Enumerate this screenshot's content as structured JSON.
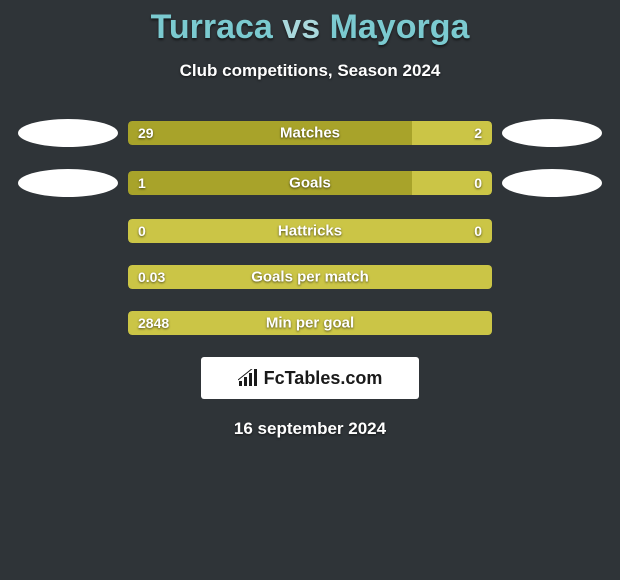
{
  "background_color": "#2f3438",
  "title": {
    "player1": "Turraca",
    "vs": "vs",
    "player2": "Mayorga",
    "color_player1": "#7bcad0",
    "color_vs": "#a9d8dc",
    "color_player2": "#7bcad0",
    "fontsize": 34
  },
  "subtitle": "Club competitions, Season 2024",
  "stats": [
    {
      "label": "Matches",
      "left_value": "29",
      "right_value": "2",
      "left_pct": 78,
      "right_pct": 22,
      "left_color": "#a8a32a",
      "right_color": "#cbc546",
      "show_left_ellipse": true,
      "show_right_ellipse": true
    },
    {
      "label": "Goals",
      "left_value": "1",
      "right_value": "0",
      "left_pct": 78,
      "right_pct": 22,
      "left_color": "#a8a32a",
      "right_color": "#cbc546",
      "show_left_ellipse": true,
      "show_right_ellipse": true
    },
    {
      "label": "Hattricks",
      "left_value": "0",
      "right_value": "0",
      "left_pct": 100,
      "right_pct": 0,
      "left_color": "#cbc546",
      "right_color": "#cbc546",
      "show_left_ellipse": false,
      "show_right_ellipse": false
    },
    {
      "label": "Goals per match",
      "left_value": "0.03",
      "right_value": "",
      "left_pct": 100,
      "right_pct": 0,
      "left_color": "#cbc546",
      "right_color": "#cbc546",
      "show_left_ellipse": false,
      "show_right_ellipse": false
    },
    {
      "label": "Min per goal",
      "left_value": "2848",
      "right_value": "",
      "left_pct": 100,
      "right_pct": 0,
      "left_color": "#cbc546",
      "right_color": "#cbc546",
      "show_left_ellipse": false,
      "show_right_ellipse": false
    }
  ],
  "logo_text": "FcTables.com",
  "date": "16 september 2024"
}
